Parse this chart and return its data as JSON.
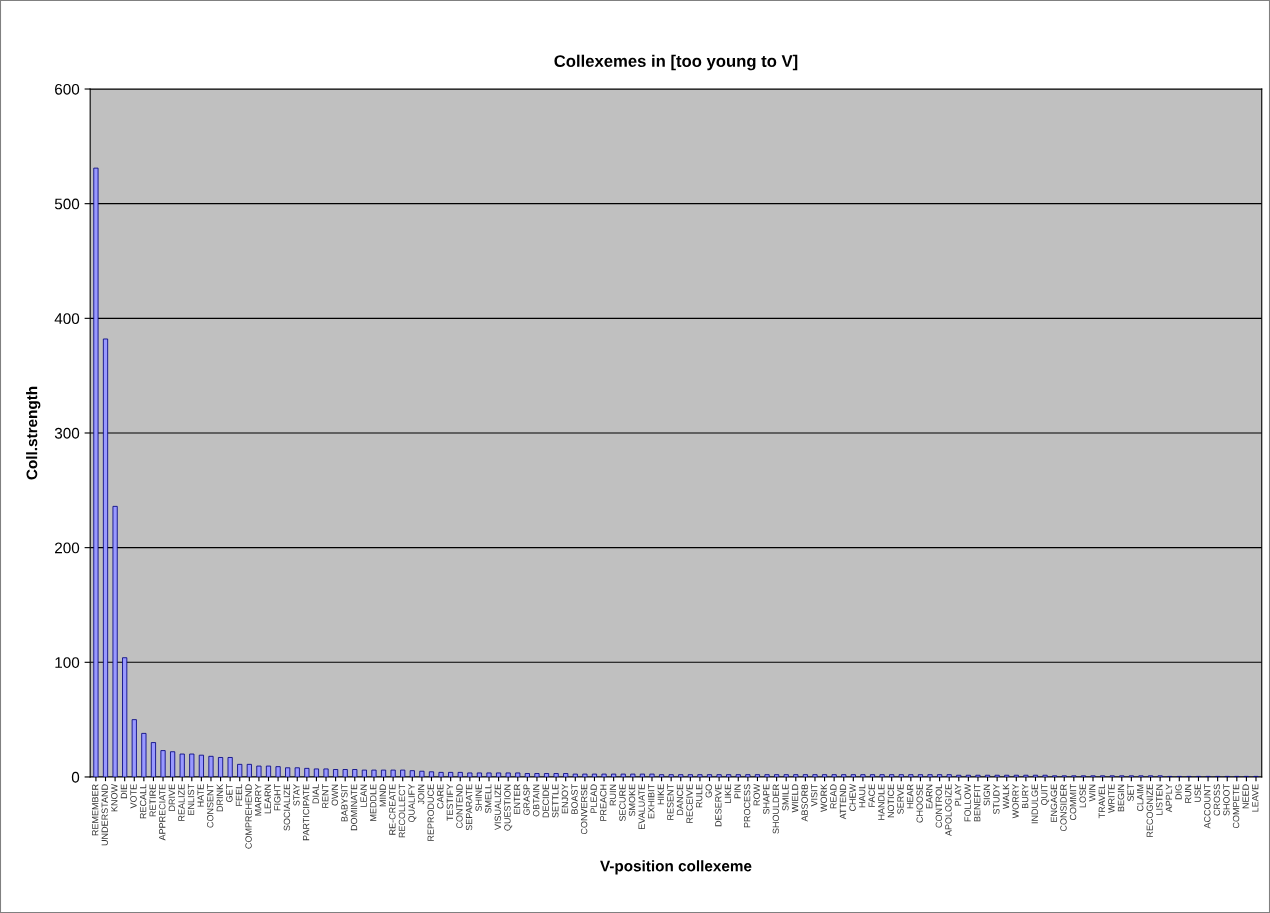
{
  "chart_data": {
    "type": "bar",
    "title": "Collexemes in [too young to V]",
    "xlabel": "V-position collexeme",
    "ylabel": "Coll.strength",
    "categories": [
      "REMEMBER",
      "UNDERSTAND",
      "KNOW",
      "DIE",
      "VOTE",
      "RECALL",
      "RETIRE",
      "APPRECIATE",
      "DRIVE",
      "REALIZE",
      "ENLIST",
      "HATE",
      "CONSENT",
      "DRINK",
      "GET",
      "FEEL",
      "COMPREHEND",
      "MARRY",
      "LEARN",
      "FIGHT",
      "SOCIALIZE",
      "STAY",
      "PARTICIPATE",
      "DIAL",
      "RENT",
      "OWN",
      "BABYSIT",
      "DOMINATE",
      "LEAN",
      "MEDDLE",
      "MIND",
      "RE-CREATE",
      "RECOLLECT",
      "QUALIFY",
      "JOIN",
      "REPRODUCE",
      "CARE",
      "TESTIFY",
      "CONTEND",
      "SEPARATE",
      "SHINE",
      "SMELL",
      "VISUALIZE",
      "QUESTION",
      "ENTER",
      "GRASP",
      "OBTAIN",
      "DECIDE",
      "SETTLE",
      "ENJOY",
      "BOAST",
      "CONVERSE",
      "PLEAD",
      "PREACH",
      "RUIN",
      "SECURE",
      "SMOKE",
      "EVALUATE",
      "EXHIBIT",
      "HIKE",
      "RESENT",
      "DANCE",
      "RECEIVE",
      "RULE",
      "GO",
      "DESERVE",
      "LIKE",
      "PIN",
      "PROCESS",
      "ROW",
      "SHAPE",
      "SHOULDER",
      "SMILE",
      "WIELD",
      "ABSORB",
      "VISIT",
      "WORK",
      "READ",
      "ATTEND",
      "CHEW",
      "HAUL",
      "FACE",
      "HANDLE",
      "NOTICE",
      "SERVE",
      "HEAR",
      "CHOOSE",
      "EARN",
      "CONTROL",
      "APOLOGIZE",
      "PLAY",
      "FOLLOW",
      "BENEFIT",
      "SIGN",
      "STUDY",
      "WALK",
      "WORRY",
      "BURY",
      "INDULGE",
      "QUIT",
      "ENGAGE",
      "CONSIDER",
      "COMMIT",
      "LOSE",
      "WIN",
      "TRAVEL",
      "WRITE",
      "BEGIN",
      "SET",
      "CLAIM",
      "RECOGNIZE",
      "LISTEN",
      "APPLY",
      "DIG",
      "RUN",
      "USE",
      "ACCOUNT",
      "CROSS",
      "SHOOT",
      "COMPETE",
      "NEED",
      "LEAVE"
    ],
    "values": [
      531,
      382,
      236,
      104,
      50,
      38,
      30,
      23,
      22,
      20,
      20,
      19,
      18,
      17,
      17,
      11,
      11,
      9.5,
      9.5,
      9,
      8,
      8,
      7.5,
      7,
      7,
      6.5,
      6.5,
      6.5,
      6,
      6,
      6,
      6,
      6,
      5.5,
      5,
      4.5,
      4,
      4,
      4,
      3.5,
      3.5,
      3.5,
      3.5,
      3.5,
      3.5,
      3,
      3,
      3,
      3,
      3,
      2.5,
      2.5,
      2.5,
      2.5,
      2.5,
      2.5,
      2.5,
      2.5,
      2.5,
      2,
      2,
      2,
      2,
      2,
      2,
      2,
      2,
      2,
      2,
      2,
      2,
      2,
      2,
      2,
      2,
      2,
      2,
      2,
      2,
      2,
      2,
      2,
      2,
      2,
      2,
      2,
      2,
      2,
      2,
      2,
      1.5,
      1.5,
      1.5,
      1.5,
      1.5,
      1.5,
      1.5,
      1.5,
      1.5,
      1.5,
      1,
      1,
      1,
      1,
      1,
      1,
      1,
      1,
      1,
      1,
      1,
      1,
      0.5,
      0.5,
      0.5,
      0.5,
      0.5,
      0.5,
      0.5,
      0.5,
      0.5,
      0.5
    ],
    "color": "#9999ff",
    "ylim": [
      0,
      600
    ],
    "yticks": [
      0,
      100,
      200,
      300,
      400,
      500,
      600
    ],
    "grid": "y",
    "legend": false
  }
}
